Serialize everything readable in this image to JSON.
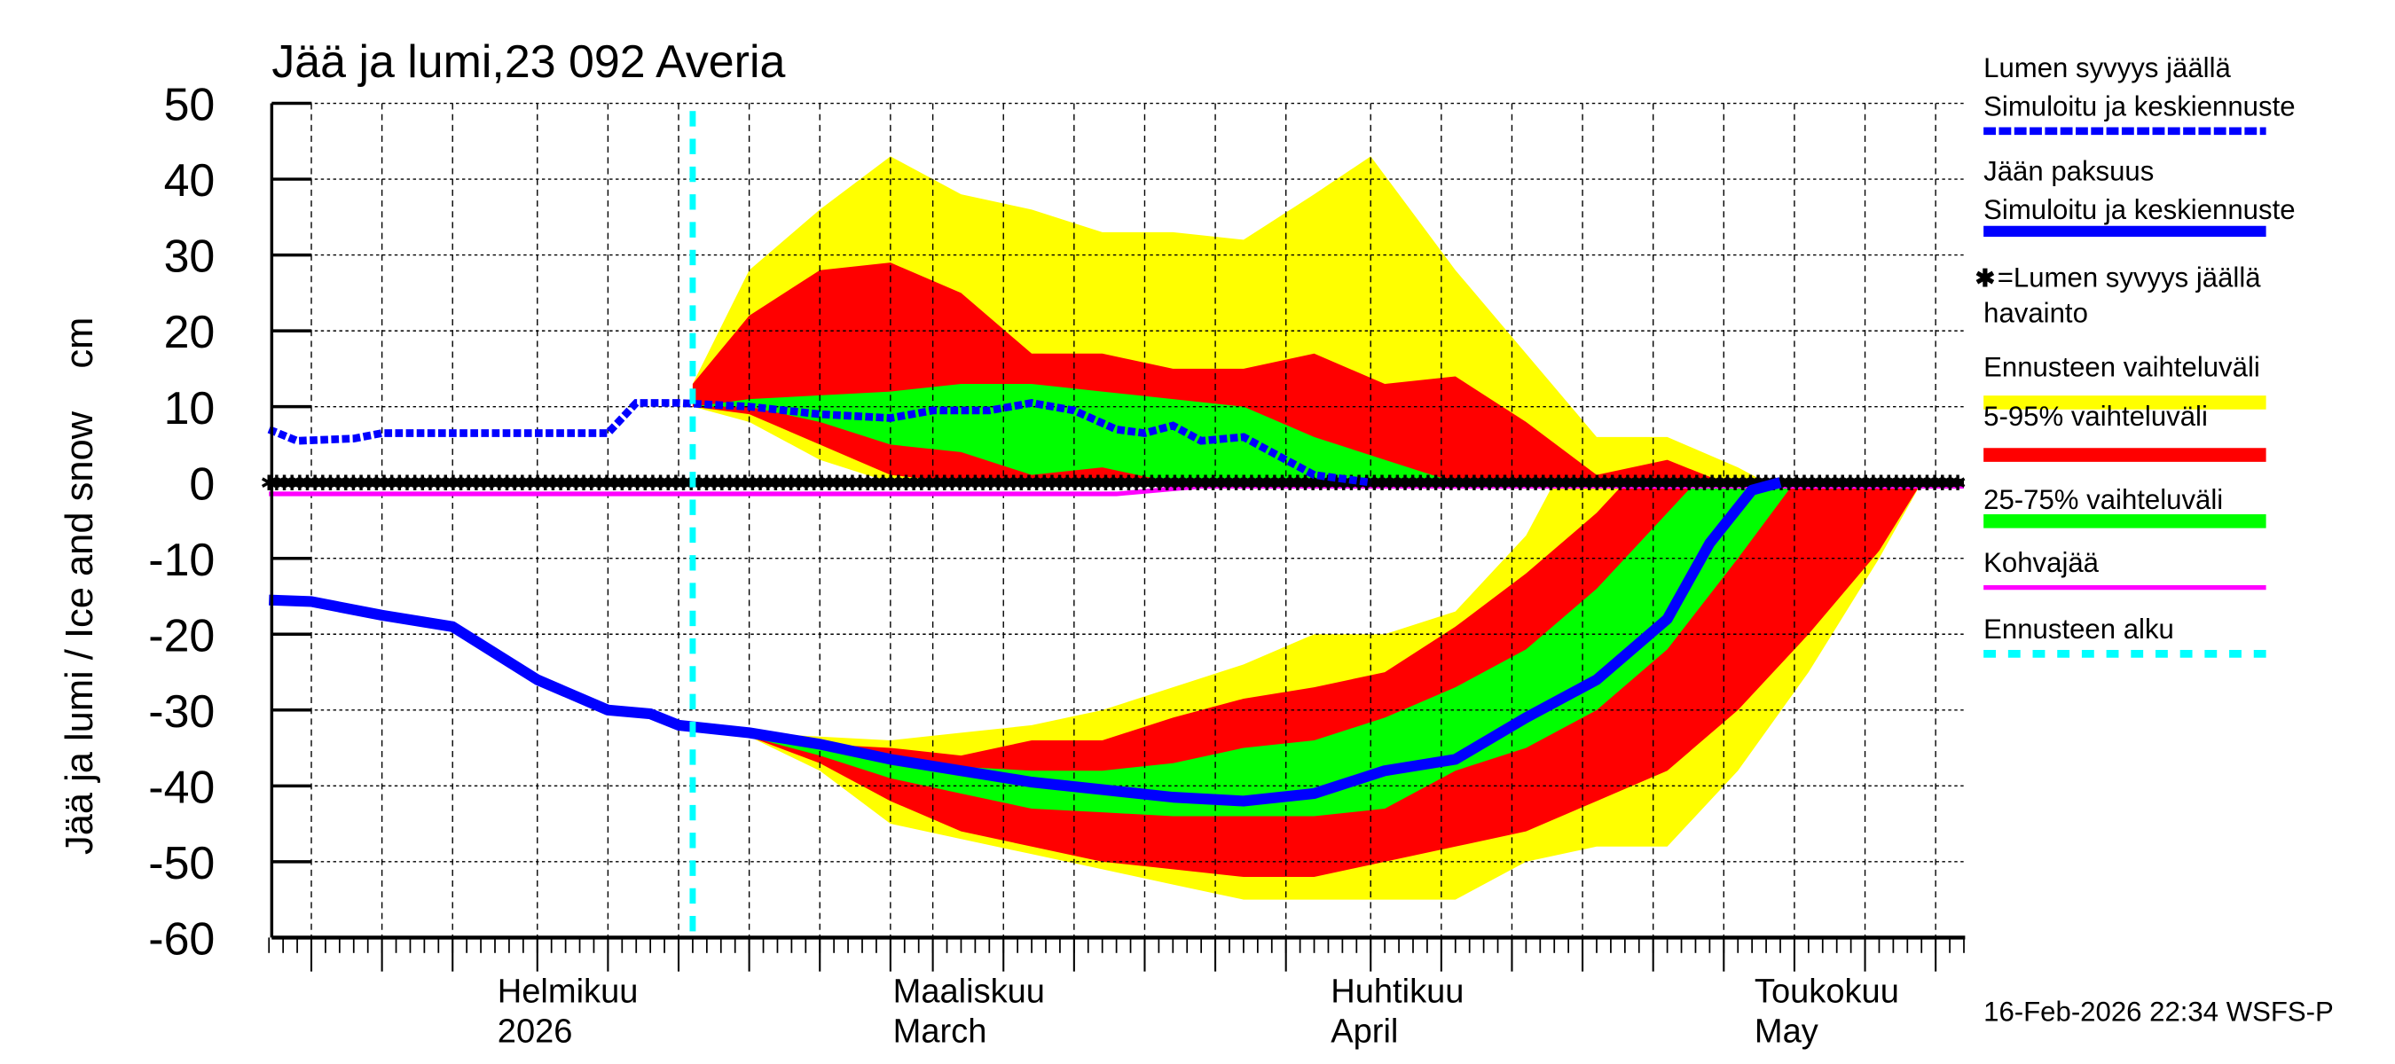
{
  "chart_data": {
    "type": "area",
    "title": "Jää ja lumi,23 092 Averia",
    "ylabel": "Jää ja lumi / Ice and snow    cm",
    "ylim": [
      -60,
      50
    ],
    "yticks": [
      50,
      40,
      30,
      20,
      10,
      0,
      -10,
      -20,
      -30,
      -40,
      -50,
      -60
    ],
    "xlim": [
      "2026-01-13",
      "2026-05-13"
    ],
    "grid": true,
    "legend_position": "right",
    "month_labels": [
      {
        "date": "2026-02-01",
        "line1": "Helmikuu",
        "line2": "2026"
      },
      {
        "date": "2026-03-01",
        "line1": "Maaliskuu",
        "line2": "March"
      },
      {
        "date": "2026-04-01",
        "line1": "Huhtikuu",
        "line2": "April"
      },
      {
        "date": "2026-05-01",
        "line1": "Toukokuu",
        "line2": "May"
      }
    ],
    "forecast_start": "2026-02-12",
    "colors": {
      "snow_line": "#0000ff",
      "ice_line": "#0000ff",
      "range": "#ffff00",
      "p5_95": "#ff0000",
      "p25_75": "#00ff00",
      "slush_ice": "#ff00ff",
      "forecast_start": "#00ffff",
      "observation": "#000000"
    },
    "bands": {
      "snow_range": {
        "upper": [
          [
            "2026-02-12",
            13
          ],
          [
            "2026-02-16",
            28
          ],
          [
            "2026-02-21",
            36
          ],
          [
            "2026-02-26",
            43
          ],
          [
            "2026-03-03",
            38
          ],
          [
            "2026-03-08",
            36
          ],
          [
            "2026-03-13",
            33
          ],
          [
            "2026-03-18",
            33
          ],
          [
            "2026-03-23",
            32
          ],
          [
            "2026-03-28",
            38
          ],
          [
            "2026-04-01",
            43
          ],
          [
            "2026-04-07",
            28
          ],
          [
            "2026-04-12",
            17
          ],
          [
            "2026-04-17",
            6
          ],
          [
            "2026-04-22",
            6
          ],
          [
            "2026-04-27",
            2
          ],
          [
            "2026-04-29",
            0
          ]
        ],
        "lower": [
          [
            "2026-02-12",
            10
          ],
          [
            "2026-02-16",
            8
          ],
          [
            "2026-02-21",
            3
          ],
          [
            "2026-02-26",
            0
          ],
          [
            "2026-04-29",
            0
          ]
        ]
      },
      "snow_5_95": {
        "upper": [
          [
            "2026-02-12",
            13
          ],
          [
            "2026-02-16",
            22
          ],
          [
            "2026-02-21",
            28
          ],
          [
            "2026-02-26",
            29
          ],
          [
            "2026-03-03",
            25
          ],
          [
            "2026-03-08",
            17
          ],
          [
            "2026-03-13",
            17
          ],
          [
            "2026-03-18",
            15
          ],
          [
            "2026-03-23",
            15
          ],
          [
            "2026-03-28",
            17
          ],
          [
            "2026-04-02",
            13
          ],
          [
            "2026-04-07",
            14
          ],
          [
            "2026-04-12",
            8
          ],
          [
            "2026-04-17",
            1
          ],
          [
            "2026-04-22",
            3
          ],
          [
            "2026-04-26",
            0
          ]
        ],
        "lower": [
          [
            "2026-02-12",
            10
          ],
          [
            "2026-02-16",
            9
          ],
          [
            "2026-02-21",
            5
          ],
          [
            "2026-02-26",
            1
          ],
          [
            "2026-03-03",
            0
          ],
          [
            "2026-04-26",
            0
          ]
        ]
      },
      "snow_25_75": {
        "upper": [
          [
            "2026-02-12",
            10
          ],
          [
            "2026-02-16",
            11
          ],
          [
            "2026-02-21",
            11.5
          ],
          [
            "2026-02-26",
            12
          ],
          [
            "2026-03-03",
            13
          ],
          [
            "2026-03-08",
            13
          ],
          [
            "2026-03-13",
            12
          ],
          [
            "2026-03-18",
            11
          ],
          [
            "2026-03-23",
            10
          ],
          [
            "2026-03-28",
            6
          ],
          [
            "2026-04-02",
            3
          ],
          [
            "2026-04-07",
            0
          ]
        ],
        "lower": [
          [
            "2026-02-12",
            10
          ],
          [
            "2026-02-16",
            10
          ],
          [
            "2026-02-21",
            8
          ],
          [
            "2026-02-26",
            5
          ],
          [
            "2026-03-03",
            4
          ],
          [
            "2026-03-08",
            1
          ],
          [
            "2026-03-13",
            2
          ],
          [
            "2026-03-18",
            0
          ],
          [
            "2026-04-07",
            0
          ]
        ]
      },
      "ice_range": {
        "upper": [
          [
            "2026-02-16",
            -33
          ],
          [
            "2026-02-21",
            -33.5
          ],
          [
            "2026-02-26",
            -34
          ],
          [
            "2026-03-03",
            -33
          ],
          [
            "2026-03-08",
            -32
          ],
          [
            "2026-03-13",
            -30
          ],
          [
            "2026-03-18",
            -27
          ],
          [
            "2026-03-23",
            -24
          ],
          [
            "2026-03-28",
            -20
          ],
          [
            "2026-04-02",
            -20
          ],
          [
            "2026-04-07",
            -17
          ],
          [
            "2026-04-12",
            -7
          ],
          [
            "2026-04-14",
            0
          ]
        ],
        "lower": [
          [
            "2026-02-16",
            -33.5
          ],
          [
            "2026-02-21",
            -38
          ],
          [
            "2026-02-26",
            -45
          ],
          [
            "2026-03-03",
            -47
          ],
          [
            "2026-03-08",
            -49
          ],
          [
            "2026-03-13",
            -51
          ],
          [
            "2026-03-18",
            -53
          ],
          [
            "2026-03-23",
            -55
          ],
          [
            "2026-03-28",
            -55
          ],
          [
            "2026-04-02",
            -55
          ],
          [
            "2026-04-07",
            -55
          ],
          [
            "2026-04-12",
            -50
          ],
          [
            "2026-04-17",
            -48
          ],
          [
            "2026-04-22",
            -48
          ],
          [
            "2026-04-27",
            -38
          ],
          [
            "2026-05-02",
            -25
          ],
          [
            "2026-05-07",
            -10
          ],
          [
            "2026-05-10",
            0
          ]
        ]
      },
      "ice_5_95": {
        "upper": [
          [
            "2026-02-16",
            -33
          ],
          [
            "2026-02-21",
            -34.5
          ],
          [
            "2026-02-26",
            -35
          ],
          [
            "2026-03-03",
            -36
          ],
          [
            "2026-03-08",
            -34
          ],
          [
            "2026-03-13",
            -34
          ],
          [
            "2026-03-18",
            -31
          ],
          [
            "2026-03-23",
            -28.5
          ],
          [
            "2026-03-28",
            -27
          ],
          [
            "2026-04-02",
            -25
          ],
          [
            "2026-04-07",
            -19
          ],
          [
            "2026-04-12",
            -12
          ],
          [
            "2026-04-17",
            -4
          ],
          [
            "2026-04-19",
            0
          ]
        ],
        "lower": [
          [
            "2026-02-16",
            -33.5
          ],
          [
            "2026-02-21",
            -37
          ],
          [
            "2026-02-26",
            -42
          ],
          [
            "2026-03-03",
            -46
          ],
          [
            "2026-03-08",
            -48
          ],
          [
            "2026-03-13",
            -50
          ],
          [
            "2026-03-18",
            -51
          ],
          [
            "2026-03-23",
            -52
          ],
          [
            "2026-03-28",
            -52
          ],
          [
            "2026-04-02",
            -50
          ],
          [
            "2026-04-07",
            -48
          ],
          [
            "2026-04-12",
            -46
          ],
          [
            "2026-04-17",
            -42
          ],
          [
            "2026-04-22",
            -38
          ],
          [
            "2026-04-27",
            -30
          ],
          [
            "2026-05-02",
            -20
          ],
          [
            "2026-05-07",
            -9
          ],
          [
            "2026-05-10",
            0
          ]
        ]
      },
      "ice_25_75": {
        "upper": [
          [
            "2026-02-16",
            -33
          ],
          [
            "2026-02-21",
            -35
          ],
          [
            "2026-02-26",
            -37
          ],
          [
            "2026-03-03",
            -37.5
          ],
          [
            "2026-03-08",
            -38
          ],
          [
            "2026-03-13",
            -38
          ],
          [
            "2026-03-18",
            -37
          ],
          [
            "2026-03-23",
            -35
          ],
          [
            "2026-03-28",
            -34
          ],
          [
            "2026-04-02",
            -31
          ],
          [
            "2026-04-07",
            -27
          ],
          [
            "2026-04-12",
            -22
          ],
          [
            "2026-04-17",
            -14
          ],
          [
            "2026-04-22",
            -4
          ],
          [
            "2026-04-24",
            0
          ]
        ],
        "lower": [
          [
            "2026-02-16",
            -33.5
          ],
          [
            "2026-02-21",
            -36
          ],
          [
            "2026-02-26",
            -39
          ],
          [
            "2026-03-03",
            -41
          ],
          [
            "2026-03-08",
            -43
          ],
          [
            "2026-03-13",
            -43.5
          ],
          [
            "2026-03-18",
            -44
          ],
          [
            "2026-03-23",
            -44
          ],
          [
            "2026-03-28",
            -44
          ],
          [
            "2026-04-02",
            -43
          ],
          [
            "2026-04-07",
            -38
          ],
          [
            "2026-04-12",
            -35
          ],
          [
            "2026-04-17",
            -30
          ],
          [
            "2026-04-22",
            -22
          ],
          [
            "2026-04-27",
            -10
          ],
          [
            "2026-05-01",
            0
          ]
        ]
      }
    },
    "series": {
      "snow_depth": [
        [
          "2026-01-13",
          7
        ],
        [
          "2026-01-15",
          5.5
        ],
        [
          "2026-01-19",
          5.8
        ],
        [
          "2026-01-21",
          6.5
        ],
        [
          "2026-01-26",
          6.5
        ],
        [
          "2026-02-01",
          6.5
        ],
        [
          "2026-02-06",
          6.5
        ],
        [
          "2026-02-08",
          10.5
        ],
        [
          "2026-02-11",
          10.5
        ],
        [
          "2026-02-16",
          10
        ],
        [
          "2026-02-21",
          9
        ],
        [
          "2026-02-26",
          8.5
        ],
        [
          "2026-03-01",
          9.5
        ],
        [
          "2026-03-05",
          9.5
        ],
        [
          "2026-03-08",
          10.5
        ],
        [
          "2026-03-11",
          9.5
        ],
        [
          "2026-03-14",
          7
        ],
        [
          "2026-03-16",
          6.5
        ],
        [
          "2026-03-18",
          7.5
        ],
        [
          "2026-03-20",
          5.5
        ],
        [
          "2026-03-23",
          6
        ],
        [
          "2026-03-26",
          3
        ],
        [
          "2026-03-28",
          1
        ],
        [
          "2026-04-01",
          0
        ]
      ],
      "ice_thickness": [
        [
          "2026-01-13",
          -15.5
        ],
        [
          "2026-01-16",
          -15.7
        ],
        [
          "2026-01-21",
          -17.5
        ],
        [
          "2026-01-26",
          -19
        ],
        [
          "2026-02-01",
          -26
        ],
        [
          "2026-02-06",
          -30
        ],
        [
          "2026-02-09",
          -30.5
        ],
        [
          "2026-02-11",
          -32
        ],
        [
          "2026-02-16",
          -33
        ],
        [
          "2026-02-21",
          -34.5
        ],
        [
          "2026-02-26",
          -36.5
        ],
        [
          "2026-03-03",
          -38
        ],
        [
          "2026-03-08",
          -39.5
        ],
        [
          "2026-03-13",
          -40.5
        ],
        [
          "2026-03-18",
          -41.5
        ],
        [
          "2026-03-23",
          -42
        ],
        [
          "2026-03-28",
          -41
        ],
        [
          "2026-04-02",
          -38
        ],
        [
          "2026-04-07",
          -36.5
        ],
        [
          "2026-04-12",
          -31
        ],
        [
          "2026-04-17",
          -26
        ],
        [
          "2026-04-22",
          -18
        ],
        [
          "2026-04-25",
          -8
        ],
        [
          "2026-04-28",
          -1
        ],
        [
          "2026-04-30",
          0
        ]
      ],
      "slush_ice": [
        [
          "2026-01-13",
          -1.5
        ],
        [
          "2026-03-14",
          -1.5
        ],
        [
          "2026-03-20",
          -0.5
        ],
        [
          "2026-05-13",
          -0.5
        ]
      ],
      "snow_observation": [
        [
          "2026-01-13",
          0
        ],
        [
          "2026-05-13",
          0
        ]
      ]
    },
    "legend": [
      {
        "line1": "Lumen syvyys jäällä",
        "line2": "Simuloitu ja keskiennuste"
      },
      {
        "line1": "Jään paksuus",
        "line2": "Simuloitu ja keskiennuste"
      },
      {
        "line1": "=Lumen syvyys jäällä",
        "line2": "havainto"
      },
      {
        "line1": "Ennusteen vaihteluväli"
      },
      {
        "line1": "5-95% vaihteluväli"
      },
      {
        "line1": "25-75% vaihteluväli"
      },
      {
        "line1": "Kohvajää"
      },
      {
        "line1": "Ennusteen alku"
      }
    ],
    "footer": "16-Feb-2026 22:34 WSFS-P"
  }
}
